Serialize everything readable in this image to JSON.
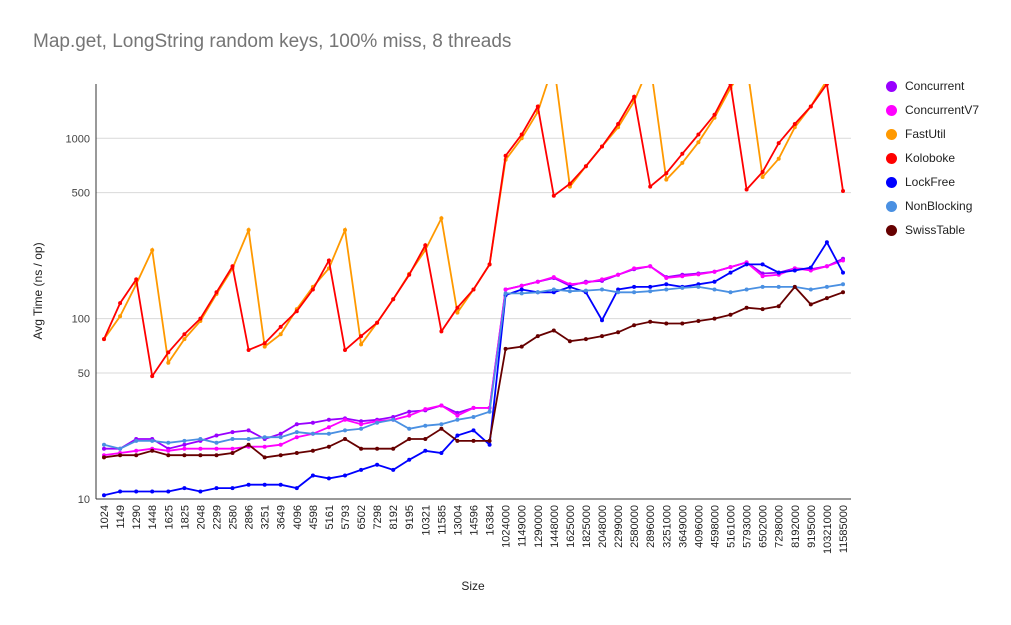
{
  "chart_data": {
    "type": "line",
    "title": "Map.get, LongString random keys, 100% miss, 8 threads",
    "xlabel": "Size",
    "ylabel": "Avg Time (ns / op)",
    "yscale": "log",
    "ylim": [
      10,
      2000
    ],
    "yticks": [
      10,
      50,
      100,
      500,
      1000
    ],
    "grid": true,
    "legend_position": "right",
    "categories": [
      "1024",
      "1149",
      "1290",
      "1448",
      "1625",
      "1825",
      "2048",
      "2299",
      "2580",
      "2896",
      "3251",
      "3649",
      "4096",
      "4598",
      "5161",
      "5793",
      "6502",
      "7298",
      "8192",
      "9195",
      "10321",
      "11585",
      "13004",
      "14596",
      "16384",
      "1024000",
      "1149000",
      "1290000",
      "1448000",
      "1625000",
      "1825000",
      "2048000",
      "2299000",
      "2580000",
      "2896000",
      "3251000",
      "3649000",
      "4096000",
      "4598000",
      "5161000",
      "5793000",
      "6502000",
      "7298000",
      "8192000",
      "9195000",
      "10321000",
      "11585000"
    ],
    "series": [
      {
        "name": "Concurrent",
        "color": "#9900ff",
        "values": [
          19,
          19,
          21.5,
          21.5,
          19,
          20,
          21,
          22.5,
          23.5,
          24,
          21.5,
          23,
          26,
          26.5,
          27.5,
          28,
          27,
          27.5,
          28.5,
          30.5,
          31,
          33,
          30,
          32,
          32,
          145,
          152,
          160,
          168,
          152,
          160,
          162,
          175,
          188,
          195,
          170,
          175,
          178,
          182,
          193,
          205,
          178,
          180,
          190,
          188,
          195,
          215
        ]
      },
      {
        "name": "ConcurrentV7",
        "color": "#ff00ff",
        "values": [
          17.5,
          18,
          18.5,
          19,
          18.5,
          19,
          19,
          19,
          19,
          19.5,
          19.5,
          20,
          22,
          23,
          25,
          27.5,
          26,
          27,
          27.5,
          29,
          31.5,
          33,
          29,
          32,
          32,
          145,
          152,
          160,
          170,
          155,
          158,
          165,
          175,
          190,
          195,
          168,
          172,
          176,
          182,
          193,
          205,
          172,
          175,
          190,
          185,
          195,
          210
        ]
      },
      {
        "name": "FastUtil",
        "color": "#ff9900",
        "values": [
          77,
          103,
          155,
          240,
          57,
          77,
          97,
          137,
          190,
          310,
          70,
          82,
          113,
          150,
          190,
          310,
          72,
          95,
          128,
          177,
          240,
          360,
          108,
          145,
          200,
          760,
          1000,
          1400,
          2600,
          540,
          700,
          900,
          1150,
          1600,
          2600,
          590,
          730,
          950,
          1300,
          1900,
          2600,
          610,
          770,
          1150,
          1500,
          2100,
          2600
        ]
      },
      {
        "name": "Koloboke",
        "color": "#ff0000",
        "values": [
          77,
          122,
          165,
          48,
          65,
          82,
          100,
          140,
          195,
          67,
          73,
          90,
          110,
          145,
          210,
          67,
          80,
          95,
          128,
          175,
          255,
          85,
          115,
          145,
          200,
          800,
          1050,
          1500,
          480,
          560,
          700,
          900,
          1200,
          1700,
          540,
          640,
          820,
          1050,
          1350,
          2000,
          520,
          650,
          940,
          1200,
          1500,
          2000,
          510
        ]
      },
      {
        "name": "LockFree",
        "color": "#0000ff",
        "values": [
          10.5,
          11,
          11,
          11,
          11,
          11.5,
          11,
          11.5,
          11.5,
          12,
          12,
          12,
          11.5,
          13.5,
          13,
          13.5,
          14.5,
          15.5,
          14.5,
          16.5,
          18.5,
          18,
          22.5,
          24,
          20,
          135,
          145,
          140,
          140,
          150,
          140,
          98,
          145,
          150,
          150,
          155,
          150,
          155,
          160,
          180,
          200,
          200,
          180,
          185,
          192,
          265,
          180
        ]
      },
      {
        "name": "NonBlocking",
        "color": "#4a90e2",
        "values": [
          20,
          19,
          21,
          21,
          20.5,
          21,
          21.5,
          20.5,
          21.5,
          21.5,
          22,
          22,
          23.5,
          23,
          23,
          24,
          24.5,
          26.5,
          27.5,
          24.5,
          25.5,
          26,
          27.5,
          28.5,
          30.5,
          138,
          138,
          140,
          145,
          142,
          143,
          145,
          140,
          140,
          142,
          145,
          148,
          150,
          145,
          140,
          145,
          150,
          150,
          150,
          145,
          150,
          155
        ]
      },
      {
        "name": "SwissTable",
        "color": "#660000",
        "values": [
          17,
          17.5,
          17.5,
          18.5,
          17.5,
          17.5,
          17.5,
          17.5,
          18,
          20,
          17,
          17.5,
          18,
          18.5,
          19.5,
          21.5,
          19,
          19,
          19,
          21.5,
          21.5,
          24.5,
          21,
          21,
          21,
          68,
          70,
          80,
          86,
          75,
          77,
          80,
          84,
          92,
          96,
          94,
          94,
          97,
          100,
          105,
          115,
          113,
          117,
          150,
          120,
          130,
          140
        ]
      }
    ]
  }
}
